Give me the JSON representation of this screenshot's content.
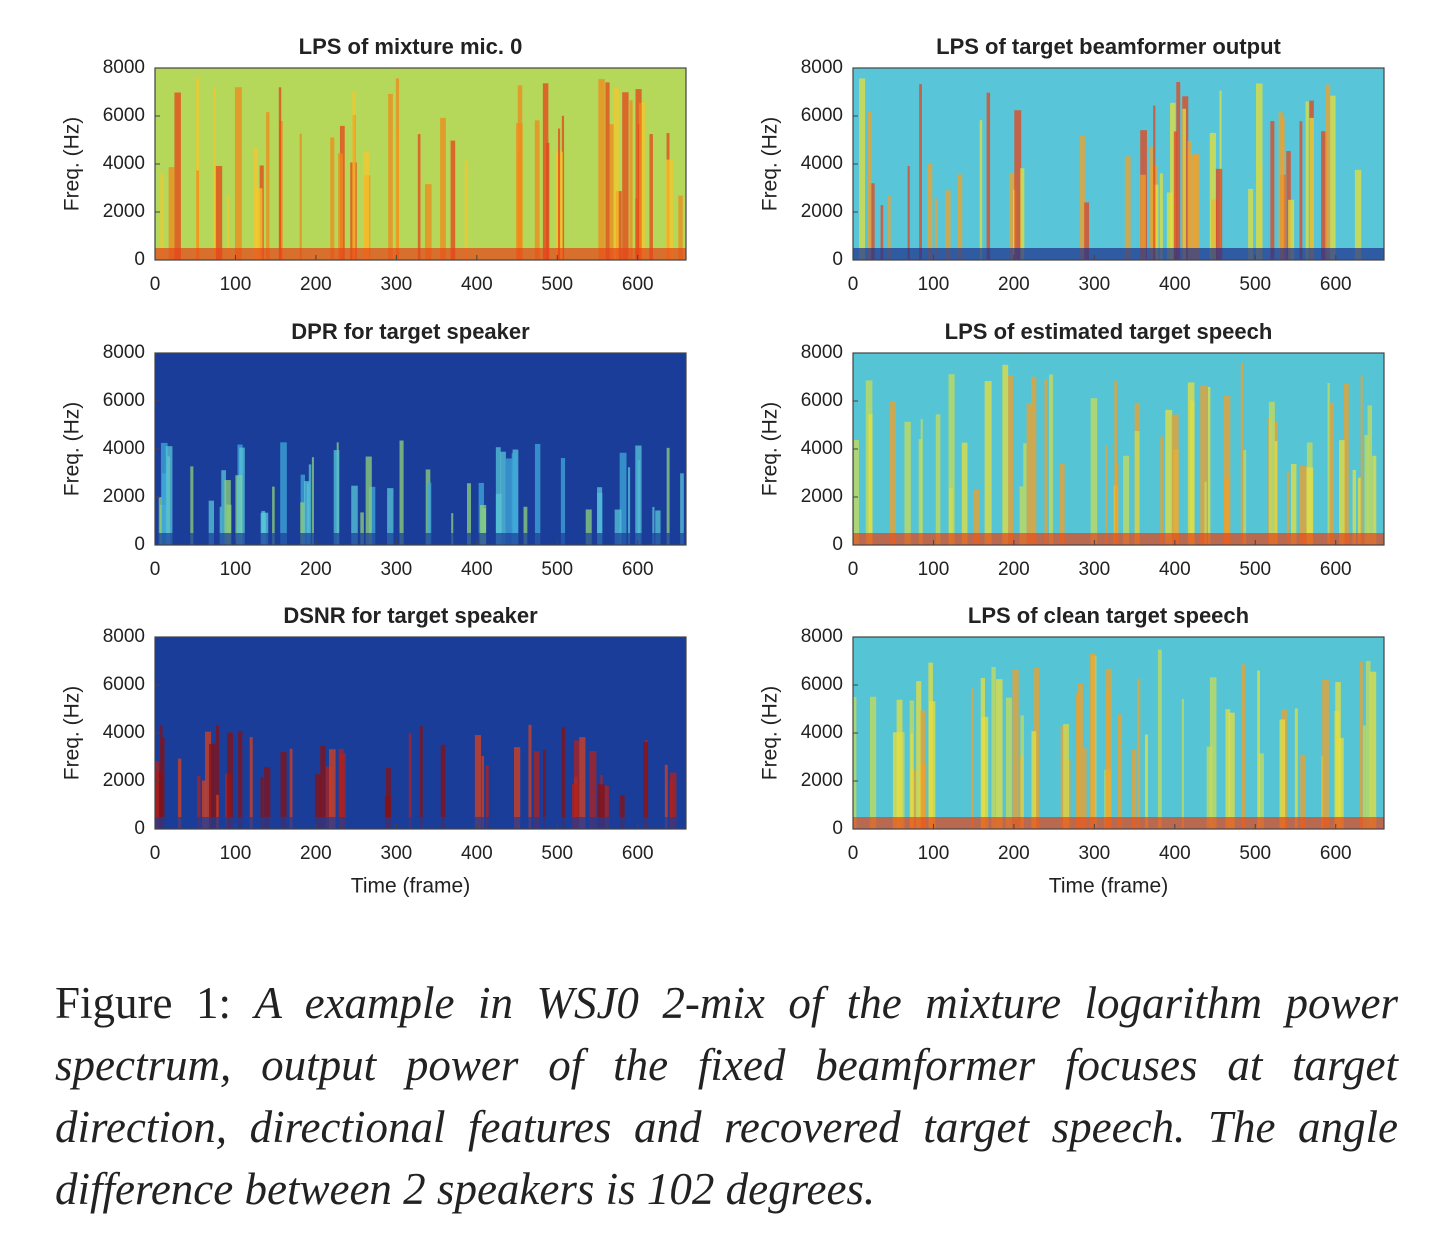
{
  "chart_data": [
    {
      "type": "spectrogram",
      "title": "LPS of mixture mic. 0",
      "ylabel": "Freq. (Hz)",
      "xlim": [
        0,
        660
      ],
      "xticks": [
        0,
        100,
        200,
        300,
        400,
        500,
        600
      ],
      "ylim": [
        0,
        8000
      ],
      "yticks": [
        0,
        2000,
        4000,
        6000,
        8000
      ]
    },
    {
      "type": "spectrogram",
      "title": "LPS of target beamformer output",
      "ylabel": "Freq. (Hz)",
      "xlim": [
        0,
        660
      ],
      "xticks": [
        0,
        100,
        200,
        300,
        400,
        500,
        600
      ],
      "ylim": [
        0,
        8000
      ],
      "yticks": [
        0,
        2000,
        4000,
        6000,
        8000
      ]
    },
    {
      "type": "spectrogram",
      "title": "DPR for target speaker",
      "ylabel": "Freq. (Hz)",
      "xlim": [
        0,
        660
      ],
      "xticks": [
        0,
        100,
        200,
        300,
        400,
        500,
        600
      ],
      "ylim": [
        0,
        8000
      ],
      "yticks": [
        0,
        2000,
        4000,
        6000,
        8000
      ]
    },
    {
      "type": "spectrogram",
      "title": "LPS of estimated target speech",
      "ylabel": "Freq. (Hz)",
      "xlim": [
        0,
        660
      ],
      "xticks": [
        0,
        100,
        200,
        300,
        400,
        500,
        600
      ],
      "ylim": [
        0,
        8000
      ],
      "yticks": [
        0,
        2000,
        4000,
        6000,
        8000
      ]
    },
    {
      "type": "spectrogram",
      "title": "DSNR for target speaker",
      "ylabel": "Freq. (Hz)",
      "xlabel": "Time (frame)",
      "xlim": [
        0,
        660
      ],
      "xticks": [
        0,
        100,
        200,
        300,
        400,
        500,
        600
      ],
      "ylim": [
        0,
        8000
      ],
      "yticks": [
        0,
        2000,
        4000,
        6000,
        8000
      ]
    },
    {
      "type": "spectrogram",
      "title": "LPS of clean target speech",
      "ylabel": "Freq. (Hz)",
      "xlabel": "Time (frame)",
      "xlim": [
        0,
        660
      ],
      "xticks": [
        0,
        100,
        200,
        300,
        400,
        500,
        600
      ],
      "ylim": [
        0,
        8000
      ],
      "yticks": [
        0,
        2000,
        4000,
        6000,
        8000
      ]
    }
  ],
  "caption": {
    "label": "Figure 1:",
    "text": "A example in WSJ0 2-mix of the mixture logarithm power spectrum, output power of the fixed beamformer focuses at target direction, directional features and recovered target speech. The angle difference between 2 speakers is 102 degrees."
  }
}
